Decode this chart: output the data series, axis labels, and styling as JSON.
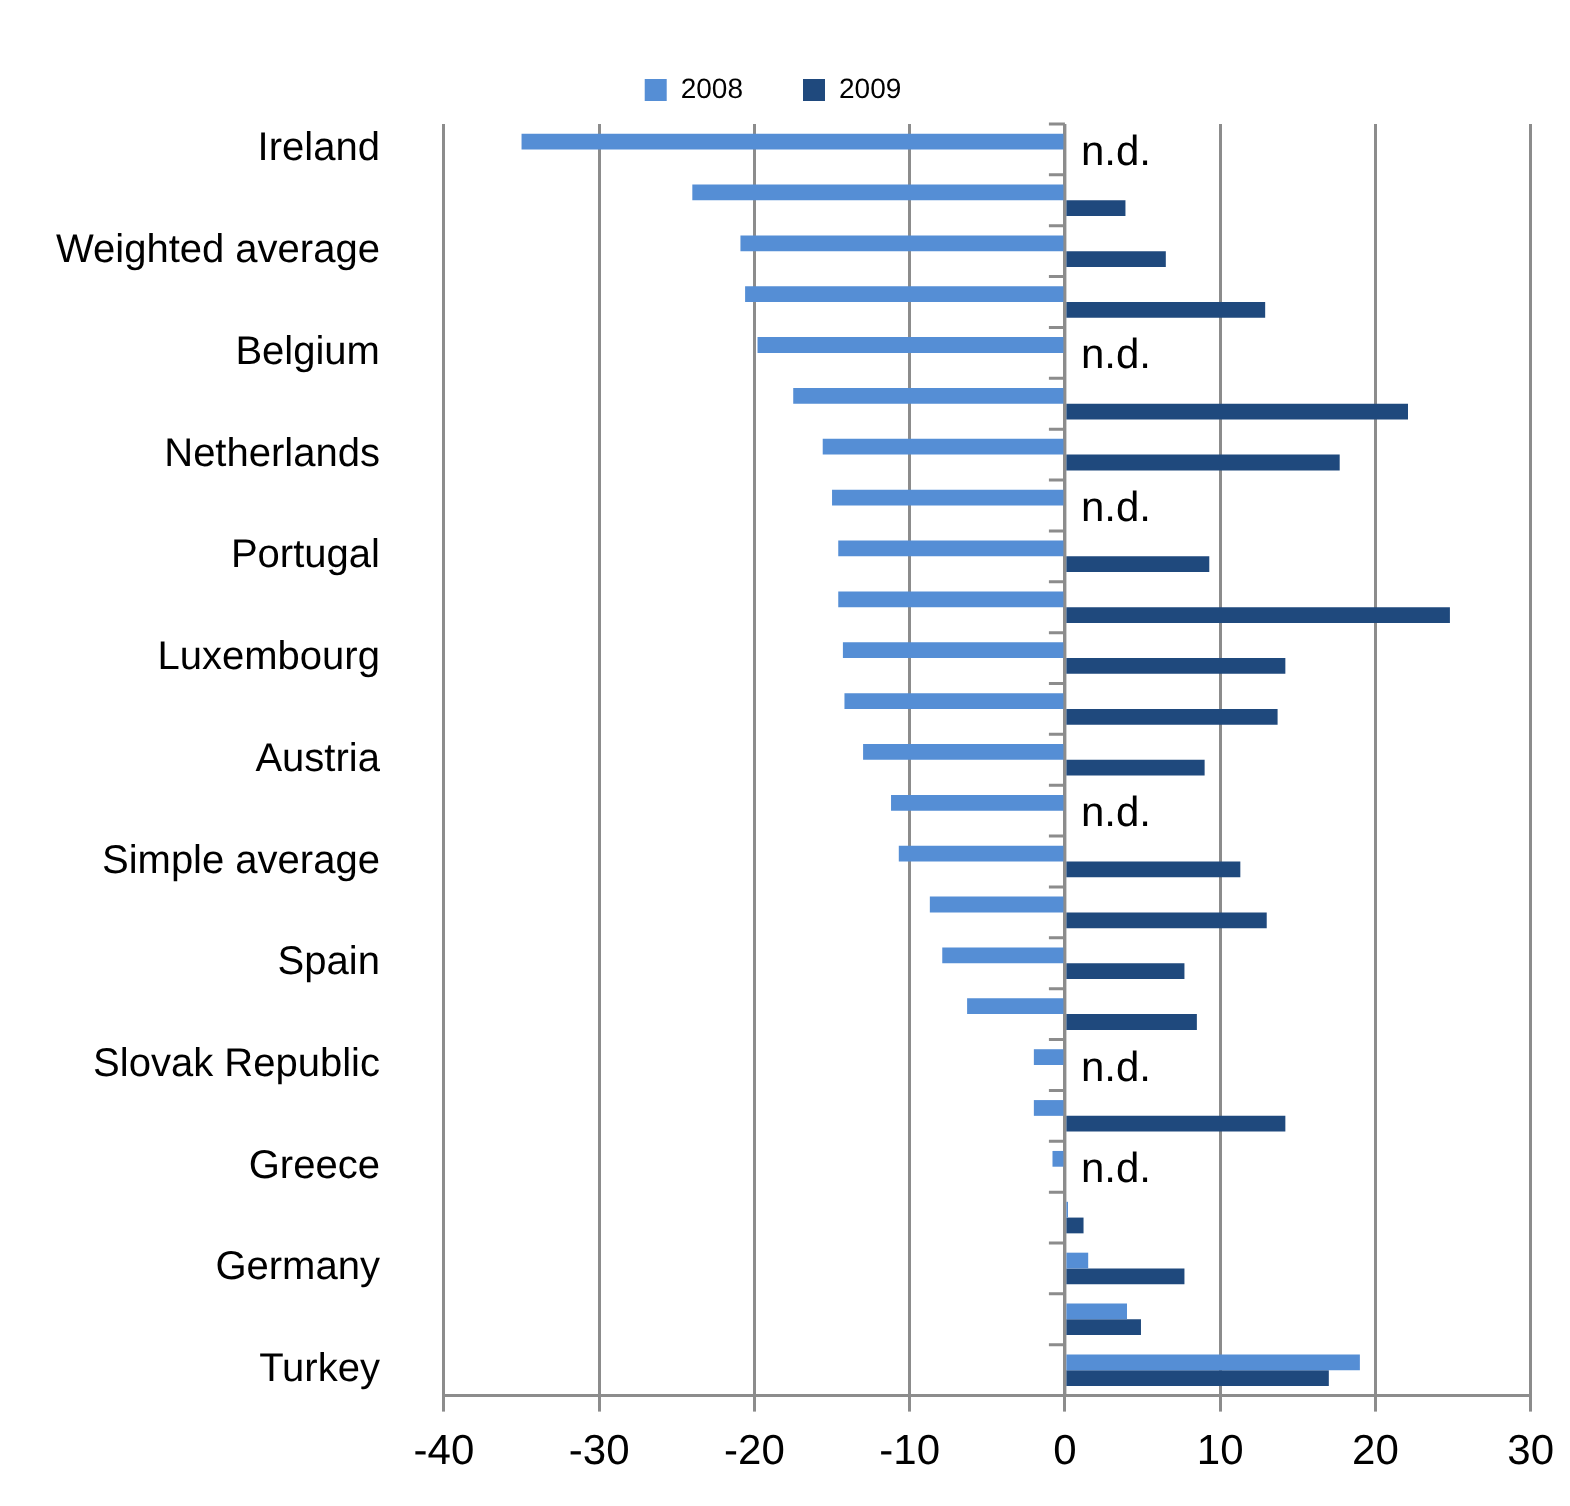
{
  "chart_data": {
    "type": "bar",
    "orientation": "horizontal",
    "categories": [
      "Ireland",
      null,
      "Weighted average",
      null,
      "Belgium",
      null,
      "Netherlands",
      null,
      "Portugal",
      null,
      "Luxembourg",
      null,
      "Austria",
      null,
      "Simple average",
      null,
      "Spain",
      null,
      "Slovak Republic",
      null,
      "Greece",
      null,
      "Germany",
      null,
      "Turkey"
    ],
    "series": [
      {
        "name": "2008",
        "color": "#558ed5",
        "values": [
          -35,
          -24,
          -20.9,
          -20.6,
          -19.8,
          -17.5,
          -15.6,
          -15,
          -14.6,
          -14.6,
          -14.3,
          -14.2,
          -13,
          -11.2,
          -10.7,
          -8.7,
          -7.9,
          -6.3,
          -2,
          -2,
          -0.8,
          0.2,
          1.5,
          4,
          19
        ]
      },
      {
        "name": "2009",
        "color": "#1f497d",
        "values": [
          null,
          3.9,
          6.5,
          12.9,
          null,
          22.1,
          17.7,
          null,
          9.3,
          24.8,
          14.2,
          13.7,
          9,
          null,
          11.3,
          13,
          7.7,
          8.5,
          null,
          14.2,
          null,
          1.2,
          7.7,
          4.9,
          17
        ]
      }
    ],
    "xlim": [
      -40,
      30
    ],
    "xticks": [
      -40,
      -30,
      -20,
      -10,
      0,
      10,
      20,
      30
    ],
    "grid": "x",
    "legend": "top",
    "annotations": [
      "n.d.",
      "n.d.",
      "n.d.",
      "n.d.",
      "n.d.",
      "n.d."
    ]
  }
}
